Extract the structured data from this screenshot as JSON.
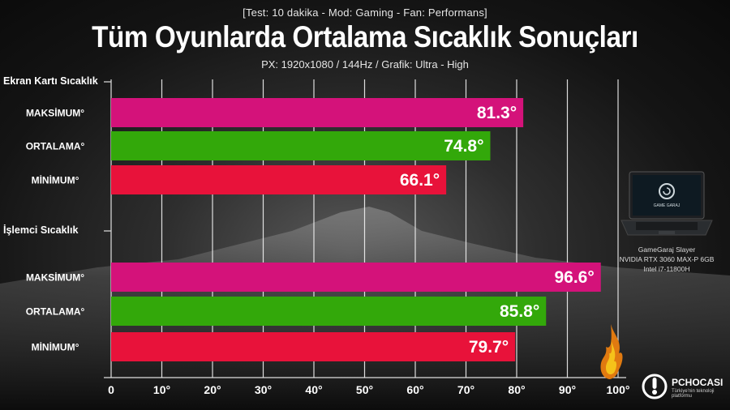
{
  "header": {
    "test_info": "[Test: 10 dakika - Mod: Gaming - Fan: Performans]",
    "title": "Tüm Oyunlarda Ortalama Sıcaklık Sonuçları",
    "settings": "PX: 1920x1080 / 144Hz / Grafik: Ultra - High"
  },
  "chart_data": {
    "type": "bar",
    "orientation": "horizontal",
    "xlim": [
      0,
      100
    ],
    "ticks": [
      "0",
      "10°",
      "20°",
      "30°",
      "40°",
      "50°",
      "60°",
      "70°",
      "80°",
      "90°",
      "100°"
    ],
    "grid": true,
    "groups": [
      {
        "name": "Ekran Kartı Sıcaklık",
        "bars": [
          {
            "label": "MAKSİMUM°",
            "value": 81.3,
            "value_label": "81.3°",
            "color": "#d4127a"
          },
          {
            "label": "ORTALAMA°",
            "value": 74.8,
            "value_label": "74.8°",
            "color": "#33a80a"
          },
          {
            "label": "MİNİMUM°",
            "value": 66.1,
            "value_label": "66.1°",
            "color": "#e8123a"
          }
        ]
      },
      {
        "name": "İşlemci Sıcaklık",
        "bars": [
          {
            "label": "MAKSİMUM°",
            "value": 96.6,
            "value_label": "96.6°",
            "color": "#d4127a"
          },
          {
            "label": "ORTALAMA°",
            "value": 85.8,
            "value_label": "85.8°",
            "color": "#33a80a"
          },
          {
            "label": "MİNİMUM°",
            "value": 79.7,
            "value_label": "79.7°",
            "color": "#e8123a"
          }
        ]
      }
    ]
  },
  "device": {
    "screen_logo_text": "GAME GARAJ",
    "caption_lines": [
      "GameGaraj Slayer",
      "NVIDIA RTX 3060 MAX-P 6GB",
      "Intel i7-11800H"
    ]
  },
  "brand": {
    "name": "PCHOCASI",
    "tagline": "Türkiye'nin teknoloji platformu",
    "icon": "pchocasi-logo-icon"
  }
}
